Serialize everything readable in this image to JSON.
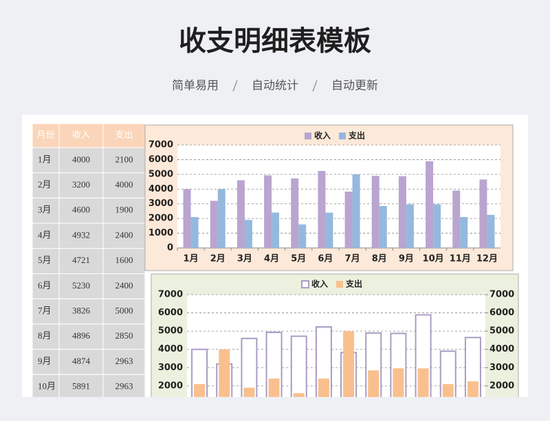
{
  "header": {
    "title": "收支明细表模板",
    "tags": [
      "简单易用",
      "自动统计",
      "自动更新"
    ]
  },
  "table": {
    "columns": [
      "月份",
      "收入",
      "支出"
    ],
    "rows": [
      [
        "1月",
        "4000",
        "2100"
      ],
      [
        "2月",
        "3200",
        "4000"
      ],
      [
        "3月",
        "4600",
        "1900"
      ],
      [
        "4月",
        "4932",
        "2400"
      ],
      [
        "5月",
        "4721",
        "1600"
      ],
      [
        "6月",
        "5230",
        "2400"
      ],
      [
        "7月",
        "3826",
        "5000"
      ],
      [
        "8月",
        "4896",
        "2850"
      ],
      [
        "9月",
        "4874",
        "2963"
      ],
      [
        "10月",
        "5891",
        "2963"
      ]
    ]
  },
  "chart_data": [
    {
      "type": "bar",
      "categories": [
        "1月",
        "2月",
        "3月",
        "4月",
        "5月",
        "6月",
        "7月",
        "8月",
        "9月",
        "10月",
        "11月",
        "12月"
      ],
      "series": [
        {
          "name": "收入",
          "color": "#b9a5cf",
          "values": [
            4000,
            3200,
            4600,
            4932,
            4721,
            5230,
            3826,
            4896,
            4874,
            5891,
            3900,
            4650
          ]
        },
        {
          "name": "支出",
          "color": "#95b8de",
          "values": [
            2100,
            4000,
            1900,
            2400,
            1600,
            2400,
            5000,
            2850,
            2963,
            2963,
            2100,
            2250
          ]
        }
      ],
      "ylim": [
        0,
        7000
      ],
      "yticks": [
        0,
        1000,
        2000,
        3000,
        4000,
        5000,
        6000,
        7000
      ],
      "grid": true,
      "legend": "top"
    },
    {
      "type": "bar",
      "series": [
        {
          "name": "收入",
          "color": "#a99cc4",
          "style": "outline",
          "values": [
            4000,
            3200,
            4600,
            4932,
            4721,
            5230,
            3826,
            4896,
            4874,
            5891,
            3900,
            4650
          ]
        },
        {
          "name": "支出",
          "color": "#f9c08e",
          "axis": "y2",
          "values": [
            2100,
            4000,
            1900,
            2400,
            1600,
            2400,
            5000,
            2850,
            2963,
            2963,
            2100,
            2250
          ]
        }
      ],
      "ylim": [
        0,
        7000
      ],
      "yticks": [
        2000,
        3000,
        4000,
        5000,
        6000,
        7000
      ],
      "y2lim": [
        0,
        7000
      ],
      "y2ticks": [
        2000,
        3000,
        4000,
        5000,
        6000,
        7000
      ],
      "grid": true,
      "legend": "top"
    }
  ]
}
